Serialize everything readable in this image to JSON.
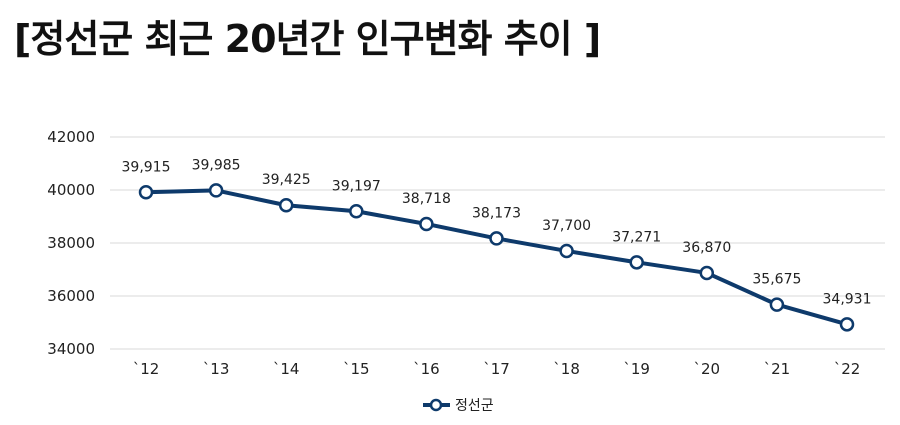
{
  "title": "[정선군 최근 20년간 인구변화 추이 ]",
  "chart_data": {
    "type": "line",
    "title": "[정선군 최근 20년간 인구변화 추이 ]",
    "xlabel": "",
    "ylabel": "",
    "categories": [
      "`12",
      "`13",
      "`14",
      "`15",
      "`16",
      "`17",
      "`18",
      "`19",
      "`20",
      "`21",
      "`22"
    ],
    "series": [
      {
        "name": "정선군",
        "values": [
          39915,
          39985,
          39425,
          39197,
          38718,
          38173,
          37700,
          37271,
          36870,
          35675,
          34931
        ],
        "labels": [
          "39,915",
          "39,985",
          "39,425",
          "39,197",
          "38,718",
          "38,173",
          "37,700",
          "37,271",
          "36,870",
          "35,675",
          "34,931"
        ],
        "color": "#0e3a6b"
      }
    ],
    "yticks": [
      "34000",
      "36000",
      "38000",
      "40000",
      "42000"
    ],
    "ylim": [
      34000,
      42000
    ],
    "grid": true,
    "legend": "bottom-center"
  }
}
